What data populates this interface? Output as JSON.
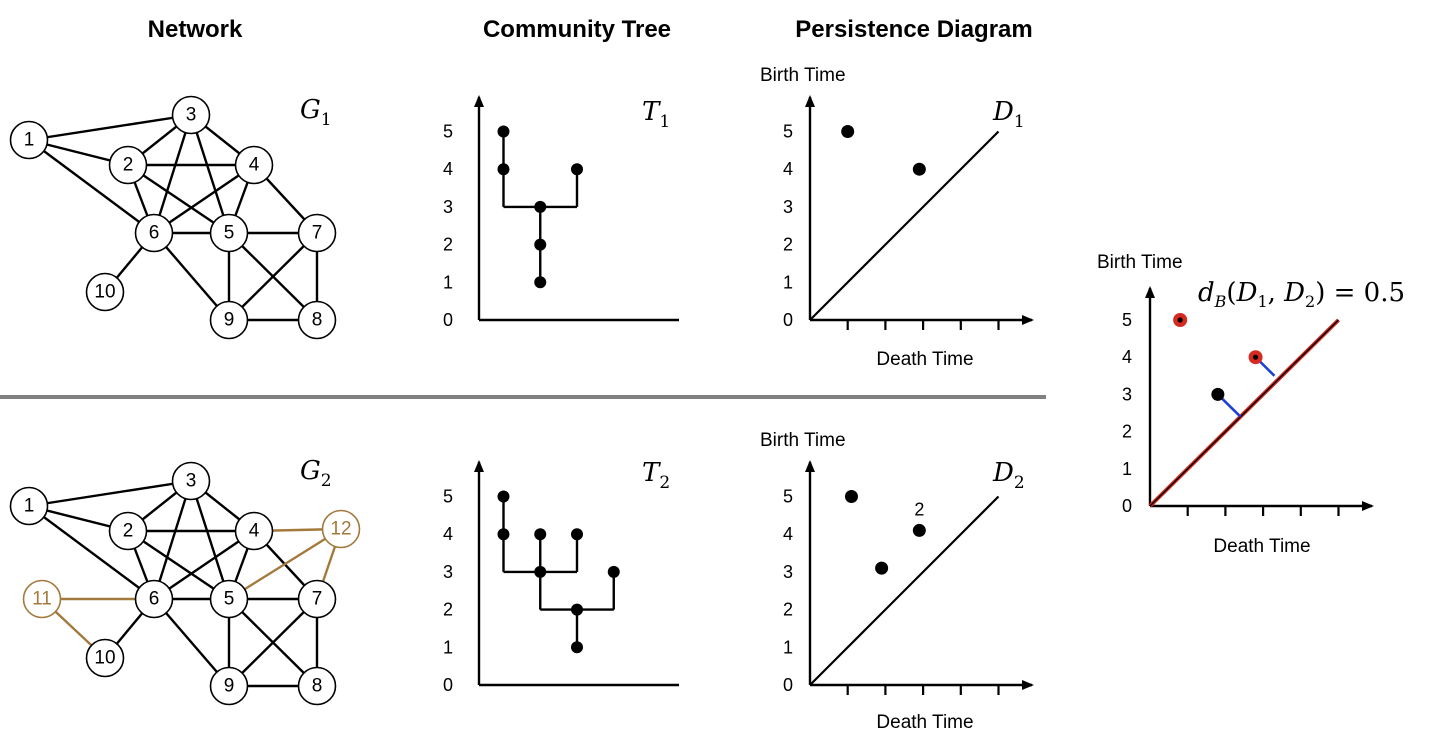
{
  "headers": {
    "network": "Network",
    "tree": "Community Tree",
    "persistence": "Persistence Diagram"
  },
  "colors": {
    "new_nodes": "#a37a3c",
    "matching": "#1f3fd6",
    "highlight": "#d62a20",
    "divider": "#808080"
  },
  "networks": [
    {
      "label_main": "G",
      "label_sub": "1",
      "nodes": [
        "1",
        "2",
        "3",
        "4",
        "5",
        "6",
        "7",
        "8",
        "9",
        "10"
      ],
      "edges": [
        [
          "1",
          "3"
        ],
        [
          "1",
          "2"
        ],
        [
          "1",
          "6"
        ],
        [
          "2",
          "3"
        ],
        [
          "2",
          "4"
        ],
        [
          "2",
          "6"
        ],
        [
          "2",
          "5"
        ],
        [
          "3",
          "4"
        ],
        [
          "3",
          "6"
        ],
        [
          "3",
          "5"
        ],
        [
          "4",
          "6"
        ],
        [
          "4",
          "5"
        ],
        [
          "4",
          "7"
        ],
        [
          "5",
          "6"
        ],
        [
          "5",
          "7"
        ],
        [
          "5",
          "9"
        ],
        [
          "5",
          "8"
        ],
        [
          "6",
          "10"
        ],
        [
          "6",
          "9"
        ],
        [
          "7",
          "9"
        ],
        [
          "7",
          "8"
        ],
        [
          "9",
          "8"
        ]
      ],
      "new_edges": []
    },
    {
      "label_main": "G",
      "label_sub": "2",
      "nodes": [
        "1",
        "2",
        "3",
        "4",
        "5",
        "6",
        "7",
        "8",
        "9",
        "10",
        "11",
        "12"
      ],
      "edges": [
        [
          "1",
          "3"
        ],
        [
          "1",
          "2"
        ],
        [
          "1",
          "6"
        ],
        [
          "2",
          "3"
        ],
        [
          "2",
          "4"
        ],
        [
          "2",
          "6"
        ],
        [
          "2",
          "5"
        ],
        [
          "3",
          "4"
        ],
        [
          "3",
          "6"
        ],
        [
          "3",
          "5"
        ],
        [
          "4",
          "6"
        ],
        [
          "4",
          "5"
        ],
        [
          "4",
          "7"
        ],
        [
          "5",
          "6"
        ],
        [
          "5",
          "7"
        ],
        [
          "5",
          "9"
        ],
        [
          "5",
          "8"
        ],
        [
          "6",
          "10"
        ],
        [
          "6",
          "9"
        ],
        [
          "7",
          "9"
        ],
        [
          "7",
          "8"
        ],
        [
          "9",
          "8"
        ]
      ],
      "new_nodes": [
        "11",
        "12"
      ],
      "new_edges": [
        [
          "11",
          "6"
        ],
        [
          "11",
          "10"
        ],
        [
          "4",
          "12"
        ],
        [
          "5",
          "12"
        ],
        [
          "12",
          "7"
        ]
      ]
    }
  ],
  "trees": [
    {
      "label_main": "T",
      "label_sub": "1",
      "y_ticks": [
        "0",
        "1",
        "2",
        "3",
        "4",
        "5"
      ],
      "points": [
        [
          1,
          5
        ],
        [
          1,
          4
        ],
        [
          2.5,
          3
        ],
        [
          2.5,
          2
        ],
        [
          2.5,
          1
        ],
        [
          4,
          4
        ]
      ],
      "segments": [
        [
          [
            1,
            5
          ],
          [
            1,
            3
          ]
        ],
        [
          [
            1,
            3
          ],
          [
            4,
            3
          ]
        ],
        [
          [
            4,
            3
          ],
          [
            4,
            4
          ]
        ],
        [
          [
            2.5,
            3
          ],
          [
            2.5,
            1
          ]
        ]
      ]
    },
    {
      "label_main": "T",
      "label_sub": "2",
      "y_ticks": [
        "0",
        "1",
        "2",
        "3",
        "4",
        "5"
      ],
      "points": [
        [
          1,
          5
        ],
        [
          1,
          4
        ],
        [
          2.5,
          4
        ],
        [
          2.5,
          3
        ],
        [
          4,
          4
        ],
        [
          4,
          2
        ],
        [
          4,
          1
        ],
        [
          5.5,
          3
        ]
      ],
      "segments": [
        [
          [
            1,
            5
          ],
          [
            1,
            3
          ]
        ],
        [
          [
            1,
            3
          ],
          [
            4,
            3
          ]
        ],
        [
          [
            2.5,
            4
          ],
          [
            2.5,
            2
          ]
        ],
        [
          [
            4,
            3
          ],
          [
            4,
            4
          ]
        ],
        [
          [
            2.5,
            2
          ],
          [
            5.5,
            2
          ]
        ],
        [
          [
            5.5,
            2
          ],
          [
            5.5,
            3
          ]
        ],
        [
          [
            4,
            2
          ],
          [
            4,
            1
          ]
        ]
      ]
    }
  ],
  "chart_data": [
    {
      "type": "scatter",
      "label_main": "D",
      "label_sub": "1",
      "xlabel": "Death Time",
      "ylabel": "Birth Time",
      "y_ticks": [
        "0",
        "1",
        "2",
        "3",
        "4",
        "5"
      ],
      "xlim": [
        0,
        5
      ],
      "ylim": [
        0,
        5
      ],
      "points": [
        [
          1,
          5
        ],
        [
          2.9,
          4
        ]
      ],
      "point_labels": [],
      "diagonal": true
    },
    {
      "type": "scatter",
      "label_main": "D",
      "label_sub": "2",
      "xlabel": "Death Time",
      "ylabel": "Birth Time",
      "y_ticks": [
        "0",
        "1",
        "2",
        "3",
        "4",
        "5"
      ],
      "xlim": [
        0,
        5
      ],
      "ylim": [
        0,
        5
      ],
      "points": [
        [
          1.1,
          5
        ],
        [
          1.9,
          3.1
        ],
        [
          2.9,
          4.1
        ]
      ],
      "point_labels": [
        {
          "point": 2,
          "text": "2"
        }
      ],
      "diagonal": true
    },
    {
      "type": "scatter",
      "title": "d_B(D_1, D_2) = 0.5",
      "xlabel": "Death Time",
      "ylabel": "Birth Time",
      "y_ticks": [
        "0",
        "1",
        "2",
        "3",
        "4",
        "5"
      ],
      "xlim": [
        0,
        5
      ],
      "ylim": [
        0,
        5
      ],
      "points": [
        [
          0.8,
          5
        ],
        [
          1.8,
          3
        ],
        [
          2.8,
          4
        ]
      ],
      "highlighted_points": [
        0,
        2
      ],
      "matching_lines": [
        [
          [
            1.8,
            3
          ],
          [
            2.4,
            2.4
          ]
        ],
        [
          [
            2.8,
            4
          ],
          [
            3.3,
            3.5
          ]
        ]
      ],
      "diagonal": true
    }
  ],
  "bottleneck": {
    "d": "d",
    "sub": "B",
    "open": "(",
    "D": "D",
    "one": "1",
    "comma": ", ",
    "two": "2",
    "close": ")",
    "eq": " = 0.5"
  }
}
